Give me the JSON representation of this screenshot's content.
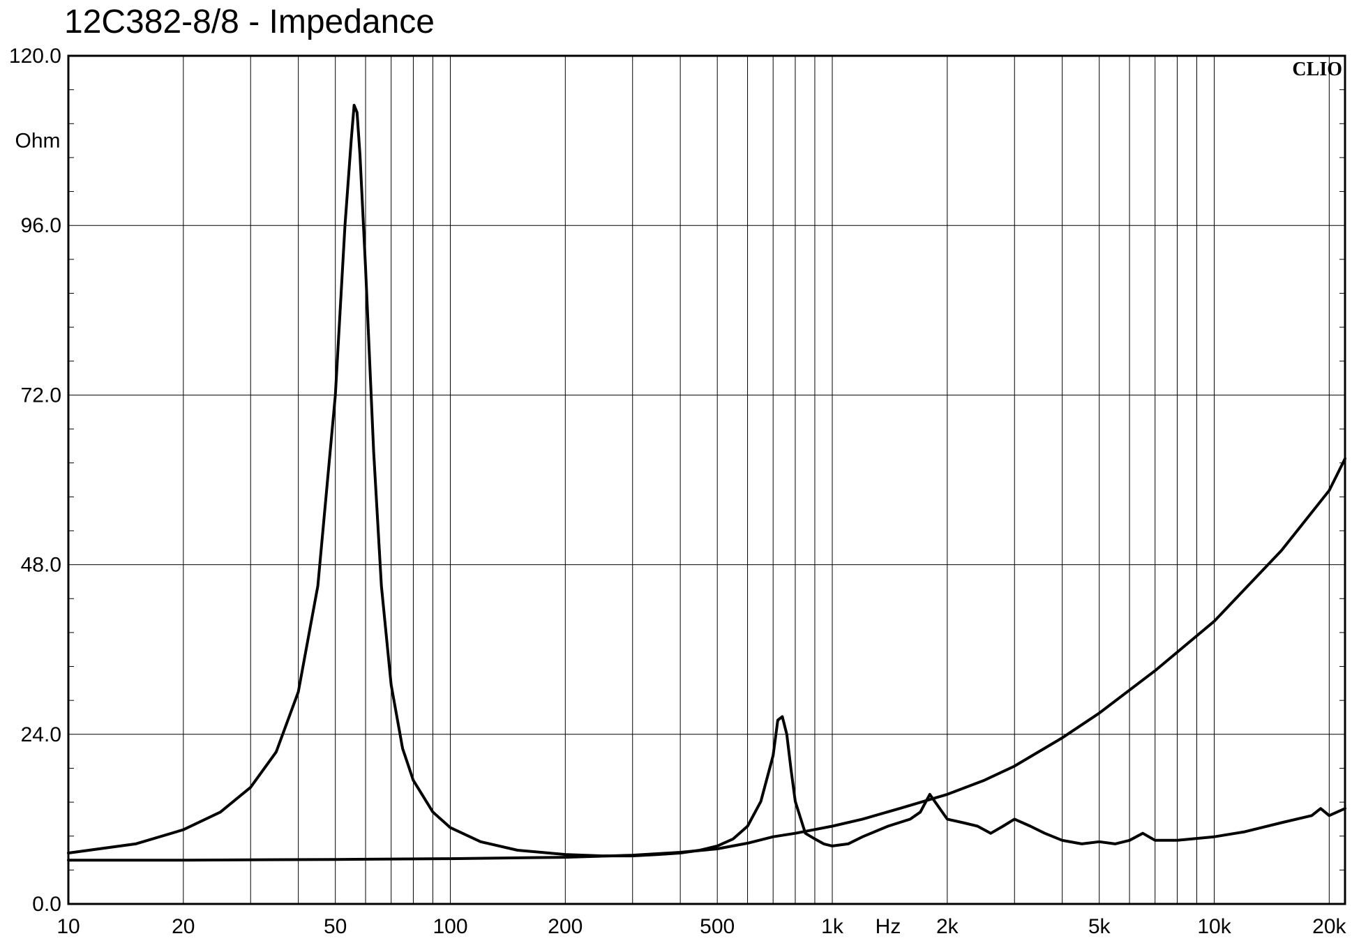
{
  "chart_data": {
    "type": "line",
    "title": "12C382-8/8 - Impedance",
    "ylabel": "Ohm",
    "xlabel": "Hz",
    "watermark": "CLIO",
    "x_scale": "log",
    "xlim": [
      10,
      22000
    ],
    "ylim": [
      0,
      120
    ],
    "grid": true,
    "y_ticks": [
      "120.0",
      "96.0",
      "72.0",
      "48.0",
      "24.0",
      "0.0"
    ],
    "y_tick_values": [
      120,
      96,
      72,
      48,
      24,
      0
    ],
    "x_tick_labels": [
      {
        "value": 10,
        "label": "10"
      },
      {
        "value": 20,
        "label": "20"
      },
      {
        "value": 50,
        "label": "50"
      },
      {
        "value": 100,
        "label": "100"
      },
      {
        "value": 200,
        "label": "200"
      },
      {
        "value": 500,
        "label": "500"
      },
      {
        "value": 1000,
        "label": "1k"
      },
      {
        "value": 2000,
        "label": "2k"
      },
      {
        "value": 5000,
        "label": "5k"
      },
      {
        "value": 10000,
        "label": "10k"
      },
      {
        "value": 20000,
        "label": "20k"
      }
    ],
    "series": [
      {
        "x": [
          10,
          15,
          20,
          25,
          30,
          35,
          40,
          45,
          50,
          53,
          55,
          56,
          57,
          58,
          60,
          63,
          66,
          70,
          75,
          80,
          90,
          100,
          120,
          150,
          200,
          250,
          300,
          350,
          400,
          450,
          500,
          550,
          600,
          650,
          700,
          720,
          740,
          760,
          780,
          800,
          850,
          900,
          950,
          1000,
          1100,
          1200,
          1400,
          1600,
          1700,
          1800,
          2000,
          2200,
          2400,
          2600,
          2800,
          3000,
          3300,
          3600,
          4000,
          4500,
          5000,
          5500,
          6000,
          6500,
          7000,
          8000,
          10000,
          12000,
          15000,
          18000,
          19000,
          20000,
          22000
        ],
        "y": [
          7.2,
          8.5,
          10.5,
          13.0,
          16.5,
          21.5,
          30.0,
          45.0,
          72.0,
          96.0,
          108.0,
          113.0,
          112.0,
          106.0,
          90.0,
          64.0,
          45.0,
          31.0,
          22.0,
          17.5,
          13.0,
          10.8,
          8.8,
          7.6,
          7.0,
          6.8,
          6.8,
          7.0,
          7.2,
          7.6,
          8.2,
          9.2,
          11.0,
          14.5,
          21.0,
          26.0,
          26.5,
          24.0,
          19.0,
          14.5,
          10.0,
          9.2,
          8.5,
          8.2,
          8.5,
          9.5,
          11.0,
          12.0,
          13.0,
          15.5,
          12.0,
          11.5,
          11.0,
          10.0,
          11.0,
          12.0,
          11.0,
          10.0,
          9.0,
          8.5,
          8.8,
          8.5,
          9.0,
          10.0,
          9.0,
          9.0,
          9.5,
          10.2,
          11.5,
          12.5,
          13.5,
          12.5,
          13.5
        ]
      },
      {
        "x": [
          10,
          20,
          50,
          100,
          200,
          300,
          400,
          500,
          600,
          700,
          800,
          1000,
          1200,
          1500,
          2000,
          2500,
          3000,
          4000,
          5000,
          7000,
          10000,
          15000,
          20000,
          22000
        ],
        "y": [
          6.2,
          6.2,
          6.3,
          6.4,
          6.6,
          6.9,
          7.3,
          7.8,
          8.6,
          9.5,
          10.0,
          11.0,
          12.0,
          13.5,
          15.5,
          17.5,
          19.5,
          23.5,
          27.0,
          33.0,
          40.0,
          50.0,
          58.5,
          63.0
        ]
      }
    ]
  }
}
